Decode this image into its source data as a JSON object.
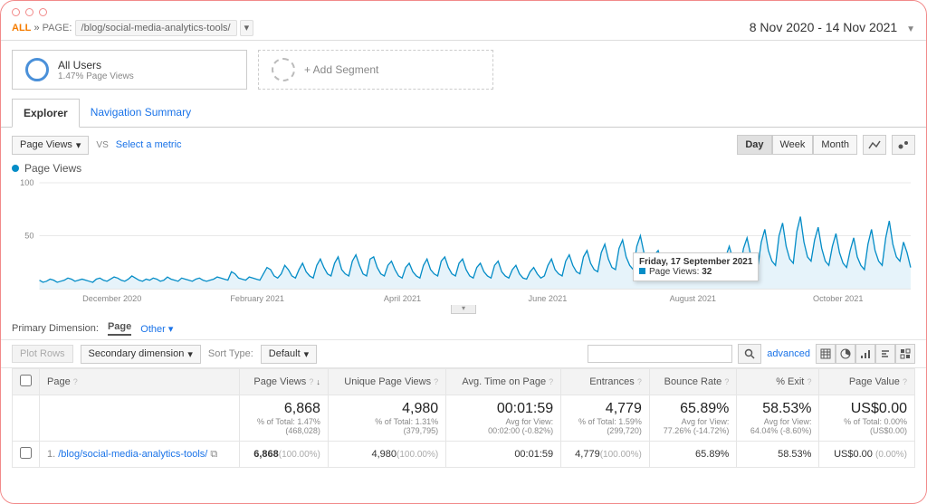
{
  "colors": {
    "frame_border": "#f28a8a",
    "line": "#058dc7",
    "fill": "#e6f3fa",
    "grid": "#e8e8e8",
    "link": "#1a73e8",
    "orange": "#f57c00"
  },
  "breadcrumb": {
    "all": "ALL",
    "sep": "»",
    "label": "PAGE:",
    "path": "/blog/social-media-analytics-tools/"
  },
  "date_range": "8 Nov 2020 - 14 Nov 2021",
  "segments": {
    "all_users": {
      "title": "All Users",
      "sub": "1.47% Page Views"
    },
    "add": "+ Add Segment"
  },
  "tabs": {
    "explorer": "Explorer",
    "nav": "Navigation Summary"
  },
  "metric_select": {
    "label": "Page Views",
    "vs": "VS",
    "select": "Select a metric"
  },
  "granularity": {
    "day": "Day",
    "week": "Week",
    "month": "Month"
  },
  "legend": "Page Views",
  "chart": {
    "type": "line",
    "y_ticks": [
      100,
      50
    ],
    "x_labels": [
      "December 2020",
      "February 2021",
      "April 2021",
      "June 2021",
      "August 2021",
      "October 2021"
    ],
    "ylim": [
      0,
      100
    ],
    "fill_color": "#e6f3fa",
    "line_color": "#058dc7",
    "values": [
      8,
      6,
      7,
      9,
      8,
      6,
      7,
      8,
      10,
      9,
      7,
      8,
      9,
      8,
      7,
      6,
      9,
      10,
      8,
      7,
      9,
      11,
      10,
      8,
      7,
      9,
      12,
      10,
      8,
      7,
      9,
      8,
      10,
      9,
      7,
      8,
      11,
      9,
      8,
      7,
      10,
      9,
      8,
      7,
      9,
      10,
      8,
      7,
      8,
      9,
      11,
      10,
      9,
      8,
      16,
      14,
      10,
      9,
      8,
      11,
      10,
      9,
      8,
      14,
      20,
      18,
      12,
      10,
      14,
      22,
      18,
      12,
      10,
      18,
      24,
      16,
      12,
      10,
      22,
      28,
      20,
      14,
      12,
      24,
      30,
      18,
      14,
      12,
      26,
      32,
      22,
      14,
      12,
      28,
      30,
      20,
      14,
      12,
      22,
      26,
      18,
      12,
      10,
      20,
      24,
      16,
      12,
      10,
      22,
      28,
      18,
      14,
      12,
      26,
      30,
      20,
      14,
      12,
      24,
      28,
      18,
      12,
      10,
      20,
      24,
      16,
      12,
      10,
      22,
      26,
      16,
      12,
      10,
      18,
      22,
      14,
      10,
      9,
      16,
      20,
      14,
      10,
      12,
      22,
      28,
      18,
      14,
      12,
      26,
      32,
      22,
      16,
      14,
      30,
      36,
      24,
      18,
      16,
      34,
      42,
      28,
      20,
      18,
      38,
      46,
      30,
      22,
      18,
      40,
      50,
      34,
      24,
      20,
      32,
      36,
      24,
      18,
      14,
      22,
      26,
      18,
      12,
      10,
      18,
      24,
      16,
      12,
      10,
      22,
      30,
      22,
      16,
      14,
      30,
      40,
      28,
      20,
      18,
      38,
      48,
      32,
      24,
      20,
      44,
      56,
      36,
      26,
      22,
      50,
      62,
      40,
      28,
      24,
      54,
      68,
      44,
      30,
      26,
      46,
      58,
      38,
      26,
      22,
      40,
      52,
      34,
      24,
      20,
      36,
      48,
      30,
      22,
      18,
      42,
      56,
      36,
      26,
      22,
      48,
      64,
      42,
      30,
      26,
      44,
      34,
      20
    ]
  },
  "tooltip": {
    "date": "Friday, 17 September 2021",
    "metric_label": "Page Views:",
    "metric_value": "32"
  },
  "dimension": {
    "label": "Primary Dimension:",
    "active": "Page",
    "other": "Other"
  },
  "filter": {
    "plot_rows": "Plot Rows",
    "secondary": "Secondary dimension",
    "sort_label": "Sort Type:",
    "sort_value": "Default",
    "advanced": "advanced"
  },
  "table": {
    "headers": [
      "Page",
      "Page Views",
      "Unique Page Views",
      "Avg. Time on Page",
      "Entrances",
      "Bounce Rate",
      "% Exit",
      "Page Value"
    ],
    "summary": {
      "page_views": {
        "val": "6,868",
        "sub1": "% of Total: 1.47%",
        "sub2": "(468,028)"
      },
      "unique": {
        "val": "4,980",
        "sub1": "% of Total: 1.31%",
        "sub2": "(379,795)"
      },
      "avg_time": {
        "val": "00:01:59",
        "sub1": "Avg for View:",
        "sub2": "00:02:00 (-0.82%)"
      },
      "entrances": {
        "val": "4,779",
        "sub1": "% of Total: 1.59%",
        "sub2": "(299,720)"
      },
      "bounce": {
        "val": "65.89%",
        "sub1": "Avg for View:",
        "sub2": "77.26% (-14.72%)"
      },
      "exit": {
        "val": "58.53%",
        "sub1": "Avg for View:",
        "sub2": "64.04% (-8.60%)"
      },
      "value": {
        "val": "US$0.00",
        "sub1": "% of Total: 0.00%",
        "sub2": "(US$0.00)"
      }
    },
    "rows": [
      {
        "num": "1.",
        "page": "/blog/social-media-analytics-tools/",
        "page_views": "6,868",
        "page_views_pct": "(100.00%)",
        "unique": "4,980",
        "unique_pct": "(100.00%)",
        "avg_time": "00:01:59",
        "entrances": "4,779",
        "entrances_pct": "(100.00%)",
        "bounce": "65.89%",
        "exit": "58.53%",
        "value": "US$0.00",
        "value_pct": "(0.00%)"
      }
    ]
  }
}
